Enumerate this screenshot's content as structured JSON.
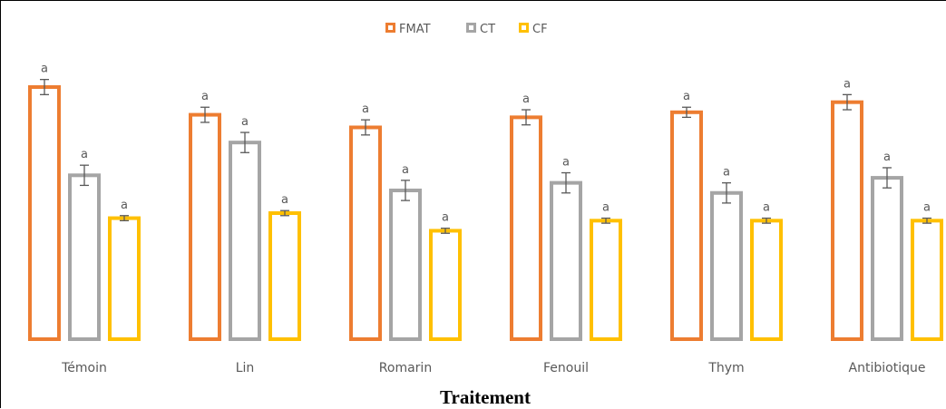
{
  "chart_data": {
    "type": "bar",
    "title": "",
    "xlabel": "Traitement",
    "ylabel": "",
    "ylim": [
      0,
      100
    ],
    "grid": false,
    "legend_position": "top-center",
    "categories": [
      "Témoin",
      "Lin",
      "Romarin",
      "Fenouil",
      "Thym",
      "Antibiotique"
    ],
    "series": [
      {
        "name": "FMAT",
        "color": "#ED7D31",
        "values": [
          100,
          89,
          84,
          88,
          90,
          94
        ],
        "errors": [
          3,
          3,
          3,
          3,
          2,
          3
        ],
        "labels": [
          "a",
          "a",
          "a",
          "a",
          "a",
          "a"
        ]
      },
      {
        "name": "CT",
        "color": "#A5A5A5",
        "values": [
          65,
          78,
          59,
          62,
          58,
          64
        ],
        "errors": [
          4,
          4,
          4,
          4,
          4,
          4
        ],
        "labels": [
          "a",
          "a",
          "a",
          "a",
          "a",
          "a"
        ]
      },
      {
        "name": "CF",
        "color": "#FFC000",
        "values": [
          48,
          50,
          43,
          47,
          47,
          47
        ],
        "errors": [
          1,
          1,
          1,
          1,
          1,
          1
        ],
        "labels": [
          "a",
          "a",
          "a",
          "a",
          "a",
          "a"
        ]
      }
    ]
  }
}
